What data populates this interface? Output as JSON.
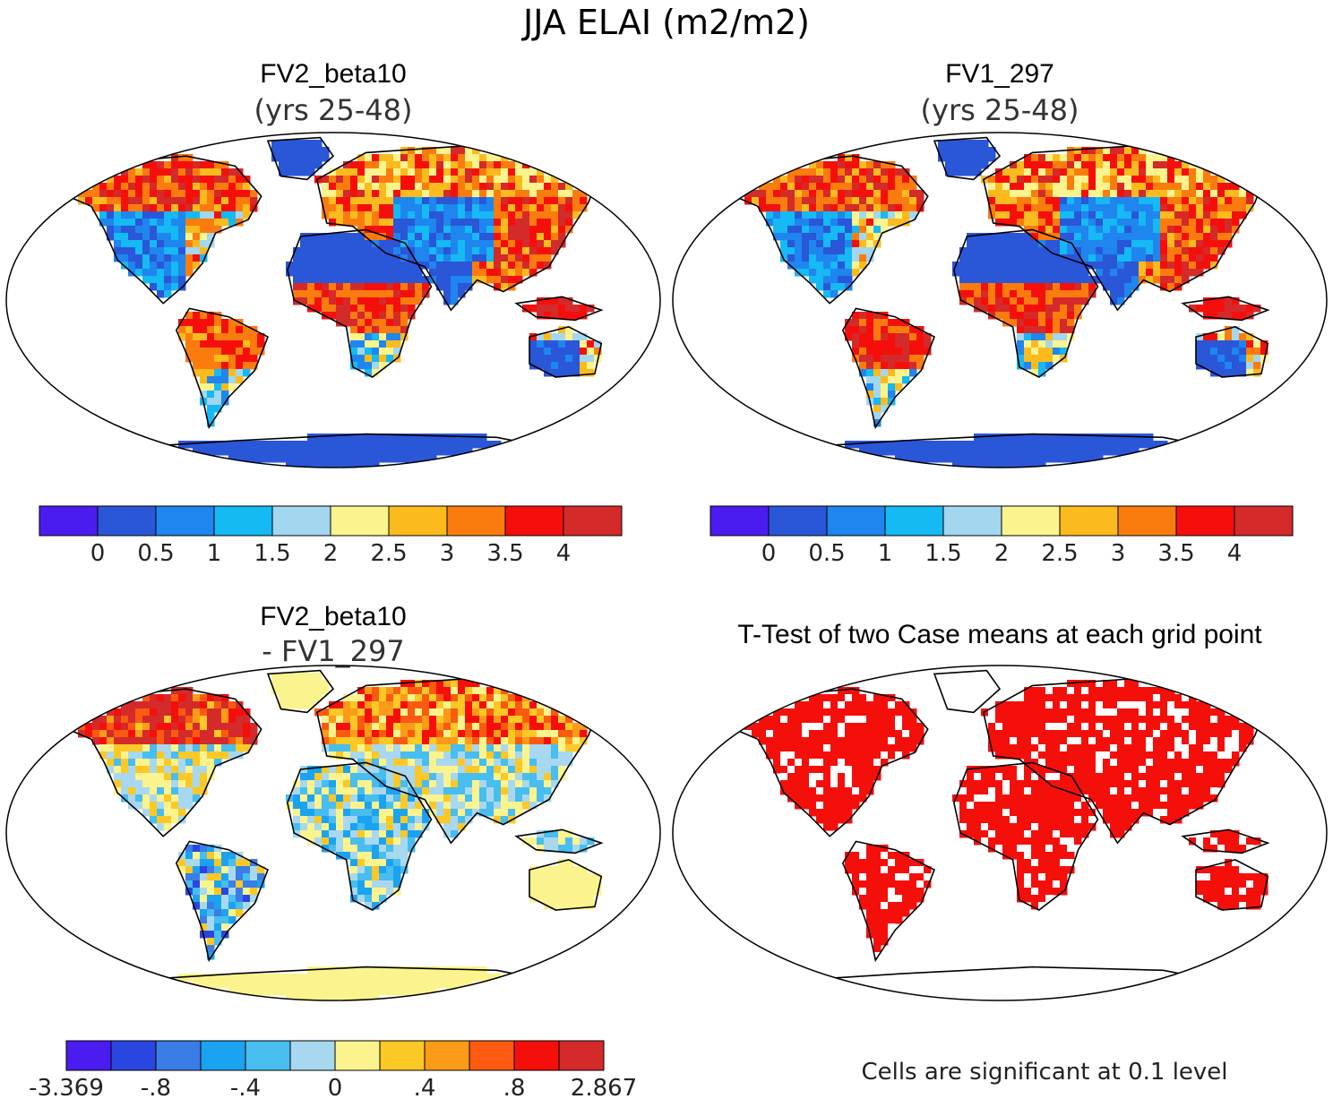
{
  "page": {
    "title": "JJA ELAI (m2/m2)",
    "footnote": "Cells are significant at 0.1 level"
  },
  "panels": [
    {
      "title": "FV2_beta10",
      "subtitle": "(yrs 25-48)"
    },
    {
      "title": "FV1_297",
      "subtitle": "(yrs 25-48)"
    },
    {
      "title": "FV2_beta10",
      "subtitle": "- FV1_297"
    },
    {
      "title": "T-Test of two Case means at each grid point",
      "subtitle": ""
    }
  ],
  "colors": {
    "abs_scale": [
      "#4b1cf0",
      "#2a56d8",
      "#1e86ee",
      "#15b9f3",
      "#a3d6ef",
      "#fbf38d",
      "#fbbb1e",
      "#fb7c0e",
      "#f50f0b",
      "#d42a2a"
    ],
    "diff_scale": [
      "#4b1cf0",
      "#2a46e0",
      "#3b7de6",
      "#1aa3f0",
      "#47bdf0",
      "#a8d8ef",
      "#fbf38d",
      "#fbc825",
      "#fb9b18",
      "#fb5a10",
      "#f50f0b",
      "#d42a2a"
    ],
    "ttest": "#f50f0b",
    "land_outline": "#000000"
  },
  "chart_data": [
    {
      "type": "heatmap",
      "title": "FV2_beta10",
      "subtitle": "(yrs 25-48)",
      "projection": "Robinson",
      "colorbar_ticks": [
        "0",
        "0.5",
        "1",
        "1.5",
        "2",
        "2.5",
        "3",
        "3.5",
        "4"
      ],
      "regions": [
        {
          "region": "Antarctica",
          "value_range": [
            0.0,
            0.5
          ]
        },
        {
          "region": "Sahara / Arabia",
          "value_range": [
            0.0,
            0.5
          ]
        },
        {
          "region": "Central Africa",
          "value_range": [
            3.5,
            4.0
          ]
        },
        {
          "region": "Amazon",
          "value_range": [
            3.0,
            3.5
          ]
        },
        {
          "region": "Eastern Canada / Alaska",
          "value_range": [
            3.5,
            4.5
          ]
        },
        {
          "region": "Eurasian boreal forest",
          "value_range": [
            2.5,
            4.0
          ]
        },
        {
          "region": "East Asia",
          "value_range": [
            3.5,
            4.5
          ]
        },
        {
          "region": "Maritime Continent",
          "value_range": [
            3.5,
            4.5
          ]
        },
        {
          "region": "Australia interior",
          "value_range": [
            0.0,
            0.5
          ]
        }
      ]
    },
    {
      "type": "heatmap",
      "title": "FV1_297",
      "subtitle": "(yrs 25-48)",
      "projection": "Robinson",
      "colorbar_ticks": [
        "0",
        "0.5",
        "1",
        "1.5",
        "2",
        "2.5",
        "3",
        "3.5",
        "4"
      ],
      "regions": [
        {
          "region": "Antarctica",
          "value_range": [
            0.0,
            0.5
          ]
        },
        {
          "region": "Sahara / Arabia",
          "value_range": [
            0.0,
            0.5
          ]
        },
        {
          "region": "Central Africa",
          "value_range": [
            3.0,
            4.0
          ]
        },
        {
          "region": "Amazon",
          "value_range": [
            3.5,
            4.0
          ]
        },
        {
          "region": "Eastern Canada / Alaska",
          "value_range": [
            3.0,
            4.0
          ]
        },
        {
          "region": "Eurasian boreal forest",
          "value_range": [
            2.5,
            4.0
          ]
        },
        {
          "region": "East Asia",
          "value_range": [
            3.5,
            4.5
          ]
        },
        {
          "region": "Maritime Continent",
          "value_range": [
            3.5,
            4.5
          ]
        },
        {
          "region": "Australia interior",
          "value_range": [
            0.0,
            0.5
          ]
        }
      ]
    },
    {
      "type": "heatmap",
      "title": "FV2_beta10",
      "subtitle": "- FV1_297",
      "projection": "Robinson",
      "colorbar_ticks": [
        "-3.369",
        "-.8",
        "-.4",
        "0",
        ".4",
        ".8",
        "2.867"
      ],
      "colorbar_range": [
        -3.369,
        2.867
      ],
      "regions": [
        {
          "region": "Antarctica",
          "value_range": [
            0.0,
            0.2
          ]
        },
        {
          "region": "Sahara / Arabia",
          "value_range": [
            -0.2,
            0.2
          ]
        },
        {
          "region": "Alaska / NW Canada",
          "value_range": [
            0.6,
            2.867
          ]
        },
        {
          "region": "Siberia",
          "value_range": [
            0.2,
            0.8
          ]
        },
        {
          "region": "Amazon",
          "value_range": [
            -0.8,
            0.0
          ]
        },
        {
          "region": "Central Africa",
          "value_range": [
            -0.6,
            0.2
          ]
        },
        {
          "region": "Australia",
          "value_range": [
            0.0,
            0.2
          ]
        }
      ]
    },
    {
      "type": "heatmap",
      "title": "T-Test of two Case means at each grid point",
      "projection": "Robinson",
      "significance_level": 0.1,
      "notes": "Cells are significant at 0.1 level"
    }
  ]
}
